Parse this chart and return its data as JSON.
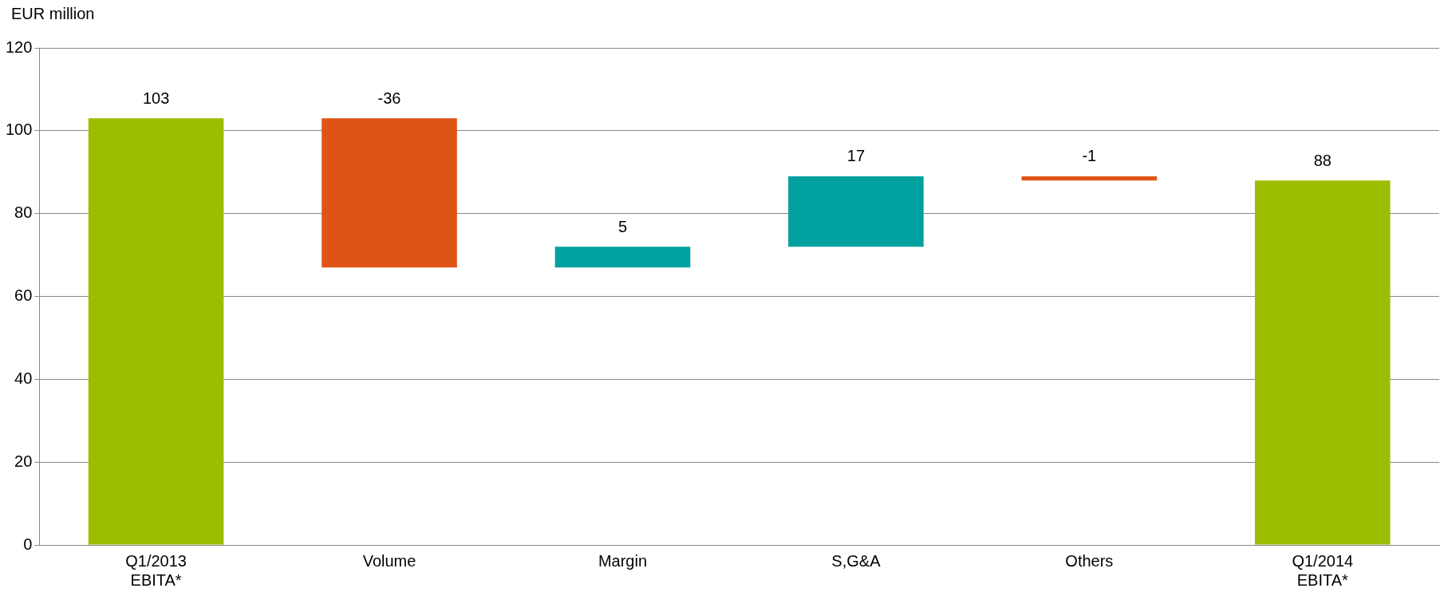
{
  "chart_data": {
    "type": "bar",
    "ylabel": "EUR million",
    "categories": [
      "Q1/2013\nEBITA*",
      "Volume",
      "Margin",
      "S,G&A",
      "Others",
      "Q1/2014\nEBITA*"
    ],
    "values": [
      103,
      -36,
      5,
      17,
      -1,
      88
    ],
    "base": [
      0,
      103,
      67,
      72,
      89,
      0
    ],
    "colors": [
      "#9bbf00",
      "#e05316",
      "#00a19e",
      "#00a19e",
      "#e05316",
      "#9bbf00"
    ],
    "ylim": [
      0,
      120
    ],
    "yticks": [
      0,
      20,
      40,
      60,
      80,
      100,
      120
    ],
    "grid": "y",
    "data_labels": true,
    "legend": false
  }
}
